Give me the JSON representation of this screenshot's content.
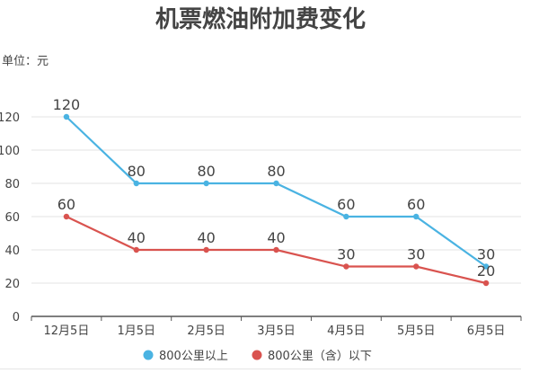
{
  "colors": {
    "series_1": "#4ab3e2",
    "series_2": "#d9534f",
    "grid": "#e3e3e3",
    "axis": "#555555",
    "label": "#444444",
    "title": "#444444"
  },
  "chart_data": {
    "type": "line",
    "title": "机票燃油附加费变化",
    "unit_label": "单位：元",
    "categories": [
      "12月5日",
      "1月5日",
      "2月5日",
      "3月5日",
      "4月5日",
      "5月5日",
      "6月5日"
    ],
    "series": [
      {
        "name": "800公里以上",
        "values": [
          120,
          80,
          80,
          80,
          60,
          60,
          30
        ]
      },
      {
        "name": "800公里（含）以下",
        "values": [
          60,
          40,
          40,
          40,
          30,
          30,
          20
        ]
      }
    ],
    "ylim": [
      0,
      120
    ],
    "yticks": [
      0,
      20,
      40,
      60,
      80,
      100,
      120
    ],
    "grid": true,
    "legend": "bottom-center",
    "data_labels": true
  }
}
